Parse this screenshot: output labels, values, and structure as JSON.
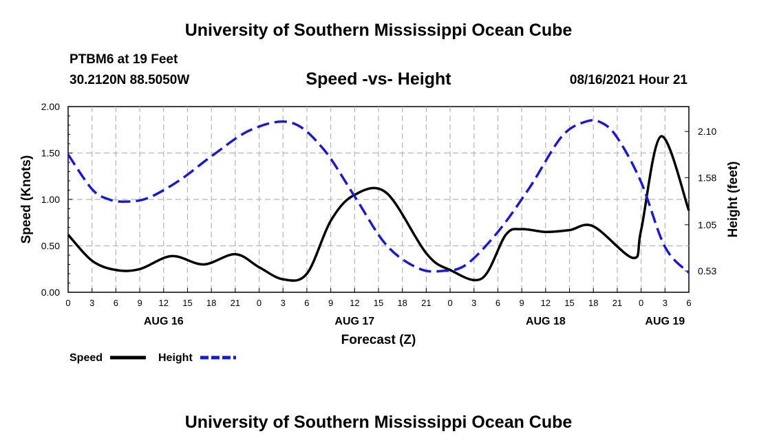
{
  "header": {
    "title": "University of Southern Mississippi Ocean Cube",
    "station": "PTBM6 at 19 Feet",
    "coords": "30.2120N  88.5050W",
    "subtitle": "Speed -vs- Height",
    "datetime": "08/16/2021 Hour 21"
  },
  "footer": {
    "title": "University of Southern Mississippi Ocean Cube"
  },
  "chart_data": {
    "type": "line",
    "xlabel": "Forecast (Z)",
    "ylabel_left": "Speed (Knots)",
    "ylabel_right": "Height (feet)",
    "xlim": [
      0,
      78
    ],
    "ylim_left": [
      0,
      2.0
    ],
    "ylim_right": [
      0.29,
      2.38
    ],
    "x_ticks": [
      0,
      3,
      6,
      9,
      12,
      15,
      18,
      21,
      24,
      27,
      30,
      33,
      36,
      39,
      42,
      45,
      48,
      51,
      54,
      57,
      60,
      63,
      66,
      69,
      72,
      75,
      78
    ],
    "x_tick_labels": [
      "0",
      "3",
      "6",
      "9",
      "12",
      "15",
      "18",
      "21",
      "0",
      "3",
      "6",
      "9",
      "12",
      "15",
      "18",
      "21",
      "0",
      "3",
      "6",
      "9",
      "12",
      "15",
      "18",
      "21",
      "0",
      "3",
      "6"
    ],
    "day_labels": [
      {
        "x": 12,
        "label": "AUG 16"
      },
      {
        "x": 36,
        "label": "AUG 17"
      },
      {
        "x": 60,
        "label": "AUG 18"
      },
      {
        "x": 75,
        "label": "AUG 19"
      }
    ],
    "y_left_ticks": [
      0,
      0.5,
      1.0,
      1.5,
      2.0
    ],
    "y_left_tick_labels": [
      "0.00",
      "0.50",
      "1.00",
      "1.50",
      "2.00"
    ],
    "y_right_ticks": [
      0.53,
      1.05,
      1.58,
      2.1
    ],
    "y_right_tick_labels": [
      "0.53",
      "1.05",
      "1.58",
      "2.10"
    ],
    "grid": true,
    "legend": [
      {
        "name": "Speed",
        "color": "#000000",
        "dash": "solid"
      },
      {
        "name": "Height",
        "color": "#1a1acc",
        "dash": "dashed"
      }
    ],
    "series": [
      {
        "name": "Speed",
        "axis": "left",
        "color": "#000000",
        "x": [
          0,
          3,
          6,
          9,
          13,
          17,
          21,
          24,
          27,
          30,
          33,
          36,
          40,
          45,
          48,
          52,
          55,
          57,
          60,
          63,
          66,
          71,
          72,
          74.5,
          78
        ],
        "y": [
          0.62,
          0.34,
          0.24,
          0.25,
          0.39,
          0.3,
          0.41,
          0.27,
          0.14,
          0.2,
          0.77,
          1.05,
          1.07,
          0.42,
          0.24,
          0.15,
          0.62,
          0.68,
          0.65,
          0.67,
          0.71,
          0.37,
          0.67,
          1.68,
          0.88
        ]
      },
      {
        "name": "Height",
        "axis": "right",
        "color": "#1a1acc",
        "x": [
          0,
          3,
          5,
          7,
          10,
          14,
          18,
          23,
          28,
          32,
          36,
          40,
          44,
          47,
          50,
          54,
          58,
          62,
          65,
          67,
          69,
          72,
          75,
          78
        ],
        "y": [
          1.84,
          1.45,
          1.34,
          1.31,
          1.35,
          1.55,
          1.82,
          2.12,
          2.2,
          1.91,
          1.37,
          0.82,
          0.56,
          0.53,
          0.6,
          0.97,
          1.47,
          2.04,
          2.21,
          2.2,
          2.03,
          1.53,
          0.8,
          0.51
        ]
      }
    ]
  }
}
